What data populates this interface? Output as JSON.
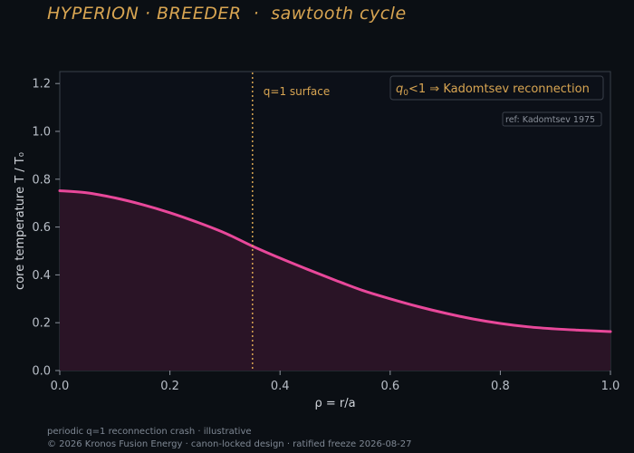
{
  "page": {
    "title": "HYPERION · BREEDER  ·  sawtooth cycle",
    "footer_line1": "periodic q=1 reconnection crash · illustrative",
    "footer_line2": "© 2026 Kronos Fusion Energy · canon-locked design · ratified freeze 2026-08-27"
  },
  "chart_data": {
    "type": "area",
    "xlabel": "ρ = r/a",
    "ylabel": "core temperature T / T₀",
    "xlim": [
      0.0,
      1.0
    ],
    "ylim": [
      0.0,
      1.25
    ],
    "x_ticks": [
      "0.0",
      "0.2",
      "0.4",
      "0.6",
      "0.8",
      "1.0"
    ],
    "y_ticks": [
      "0.0",
      "0.2",
      "0.4",
      "0.6",
      "0.8",
      "1.0",
      "1.2"
    ],
    "grid": false,
    "series": [
      {
        "color": "#e8489a",
        "x": [
          0.0,
          0.05,
          0.1,
          0.15,
          0.2,
          0.25,
          0.3,
          0.35,
          0.4,
          0.45,
          0.5,
          0.55,
          0.6,
          0.65,
          0.7,
          0.75,
          0.8,
          0.85,
          0.9,
          0.95,
          1.0
        ],
        "y": [
          0.752,
          0.743,
          0.722,
          0.694,
          0.66,
          0.62,
          0.575,
          0.52,
          0.47,
          0.423,
          0.378,
          0.335,
          0.3,
          0.268,
          0.24,
          0.216,
          0.197,
          0.183,
          0.174,
          0.168,
          0.163
        ]
      }
    ],
    "annotations": {
      "vline": {
        "x": 0.35,
        "label": "q=1 surface",
        "color": "#d8a552"
      },
      "box_prefix": "q",
      "box_sub": "0",
      "box_rest": "<1 ⇒ Kadomtsev reconnection",
      "ref": "ref: Kadomtsev 1975"
    },
    "colors": {
      "background": "#0b0f14",
      "plot_background": "#0c1018",
      "fill": "#2a1426",
      "axis": "#3a404a",
      "text": "#b9bfc8",
      "accent": "#d8a552"
    }
  }
}
